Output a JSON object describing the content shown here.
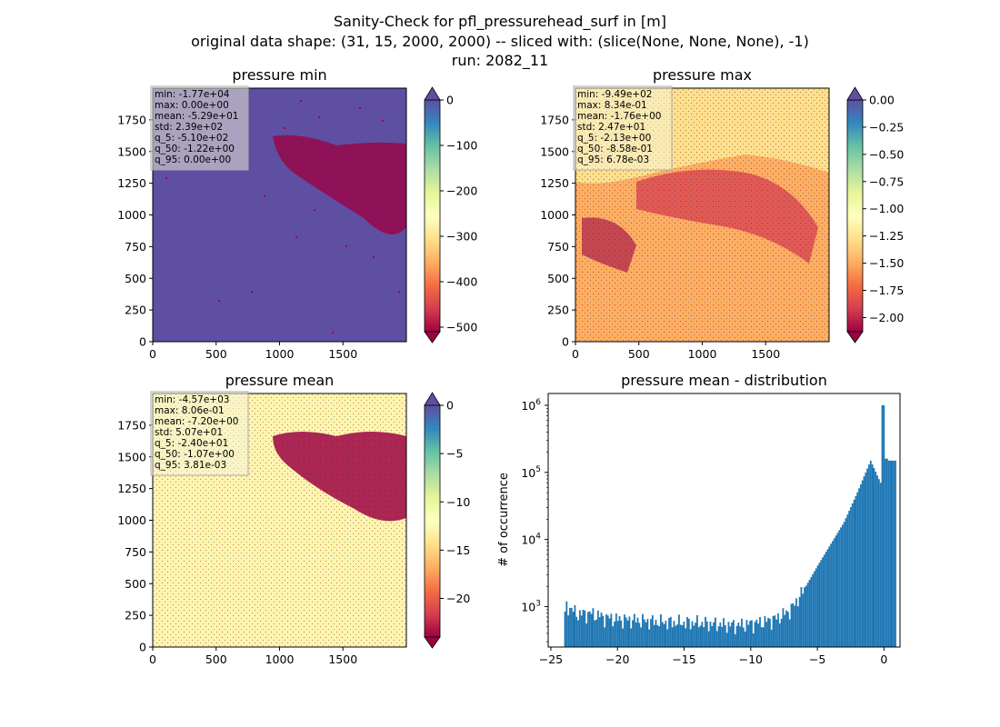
{
  "suptitle": {
    "line1": "Sanity-Check for pfl_pressurehead_surf in [m]",
    "line2": "original data shape: (31, 15, 2000, 2000) -- sliced with: (slice(None, None, None), -1)",
    "line3": "run: 2082_11"
  },
  "colors": {
    "spectral": [
      "#9e0142",
      "#d53e4f",
      "#f46d43",
      "#fdae61",
      "#fee08b",
      "#ffffbf",
      "#e6f598",
      "#abdda4",
      "#66c2a5",
      "#3288bd",
      "#5e4fa2"
    ],
    "hist_bar": "#1f77b4",
    "stats_box_bg": "#f5f5dc"
  },
  "chart_data": [
    {
      "type": "heatmap",
      "title": "pressure min",
      "xticks": [
        "0",
        "500",
        "1000",
        "1500"
      ],
      "yticks": [
        "0",
        "250",
        "500",
        "750",
        "1000",
        "1250",
        "1500",
        "1750"
      ],
      "xlim": [
        0,
        2000
      ],
      "ylim": [
        0,
        2000
      ],
      "colorbar": {
        "ticks": [
          "0",
          "−100",
          "−200",
          "−300",
          "−400",
          "−500"
        ],
        "range": [
          -510,
          0
        ],
        "extend": "both"
      },
      "stats": [
        "min: -1.77e+04",
        "max: 0.00e+00",
        "mean: -5.29e+01",
        "std: 2.39e+02",
        "q_5: -5.10e+02",
        "q_50: -1.22e+00",
        "q_95: 0.00e+00"
      ]
    },
    {
      "type": "heatmap",
      "title": "pressure max",
      "xticks": [
        "0",
        "500",
        "1000",
        "1500"
      ],
      "yticks": [
        "0",
        "250",
        "500",
        "750",
        "1000",
        "1250",
        "1500",
        "1750"
      ],
      "xlim": [
        0,
        2000
      ],
      "ylim": [
        0,
        2000
      ],
      "colorbar": {
        "ticks": [
          "0.00",
          "−0.25",
          "−0.50",
          "−0.75",
          "−1.00",
          "−1.25",
          "−1.50",
          "−1.75",
          "−2.00"
        ],
        "range": [
          -2.13,
          0
        ],
        "extend": "both"
      },
      "stats": [
        "min: -9.49e+02",
        "max: 8.34e-01",
        "mean: -1.76e+00",
        "std: 2.47e+01",
        "q_5: -2.13e+00",
        "q_50: -8.58e-01",
        "q_95: 6.78e-03"
      ]
    },
    {
      "type": "heatmap",
      "title": "pressure mean",
      "xticks": [
        "0",
        "500",
        "1000",
        "1500"
      ],
      "yticks": [
        "0",
        "250",
        "500",
        "750",
        "1000",
        "1250",
        "1500",
        "1750"
      ],
      "xlim": [
        0,
        2000
      ],
      "ylim": [
        0,
        2000
      ],
      "colorbar": {
        "ticks": [
          "0",
          "−5",
          "−10",
          "−15",
          "−20"
        ],
        "range": [
          -24,
          0
        ],
        "extend": "both"
      },
      "stats": [
        "min: -4.57e+03",
        "max: 8.06e-01",
        "mean: -7.20e+00",
        "std: 5.07e+01",
        "q_5: -2.40e+01",
        "q_50: -1.07e+00",
        "q_95: 3.81e-03"
      ]
    },
    {
      "type": "bar",
      "title": "pressure mean - distribution",
      "xlabel": "",
      "ylabel": "# of occurrence",
      "yscale": "log",
      "xlim": [
        -25.2,
        1.2
      ],
      "ylim": [
        250,
        1500000
      ],
      "xticks": [
        "−25",
        "−20",
        "−15",
        "−10",
        "−5",
        "0"
      ],
      "yticks": [
        "10^3",
        "10^4",
        "10^5",
        "10^6"
      ],
      "bins": {
        "start": -24.0,
        "end": 0.8,
        "width": 0.124
      },
      "profile": [
        [
          -24.0,
          650
        ],
        [
          -23.8,
          1050
        ],
        [
          -23.0,
          780
        ],
        [
          -22.0,
          800
        ],
        [
          -21.0,
          700
        ],
        [
          -20.0,
          650
        ],
        [
          -19.0,
          640
        ],
        [
          -18.0,
          620
        ],
        [
          -17.0,
          600
        ],
        [
          -16.0,
          590
        ],
        [
          -15.0,
          580
        ],
        [
          -14.0,
          580
        ],
        [
          -13.0,
          560
        ],
        [
          -12.0,
          540
        ],
        [
          -11.0,
          530
        ],
        [
          -10.0,
          560
        ],
        [
          -9.0,
          600
        ],
        [
          -8.0,
          680
        ],
        [
          -7.0,
          900
        ],
        [
          -6.0,
          1800
        ],
        [
          -5.0,
          4000
        ],
        [
          -4.0,
          8500
        ],
        [
          -3.0,
          18000
        ],
        [
          -2.0,
          50000
        ],
        [
          -1.0,
          150000
        ],
        [
          -0.5,
          90000
        ],
        [
          -0.1,
          60000
        ],
        [
          0.0,
          1000000
        ],
        [
          0.1,
          150000
        ],
        [
          0.8,
          150000
        ]
      ]
    }
  ]
}
